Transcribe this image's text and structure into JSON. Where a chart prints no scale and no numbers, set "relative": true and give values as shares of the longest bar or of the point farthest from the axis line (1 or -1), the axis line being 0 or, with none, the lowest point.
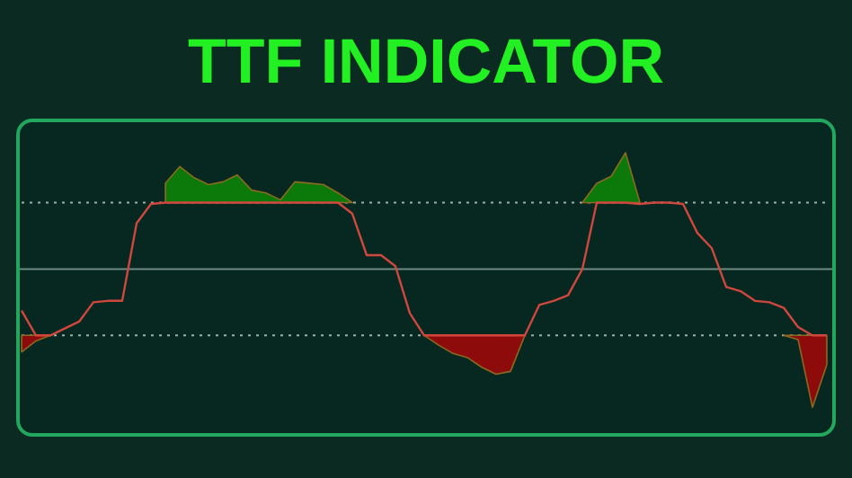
{
  "chart_data": {
    "type": "line",
    "title": "TTF INDICATOR",
    "relative": true,
    "categories": [
      null,
      null,
      null,
      null,
      null,
      null,
      null,
      null,
      null,
      null,
      null,
      null,
      null,
      null,
      null,
      null,
      null,
      null,
      null,
      null,
      null,
      null,
      null,
      null,
      null,
      null,
      null,
      null,
      null,
      null,
      null,
      null,
      null,
      null,
      null,
      null,
      null,
      null,
      null,
      null,
      null,
      null,
      null,
      null,
      null,
      null,
      null,
      null,
      null,
      null,
      null,
      null,
      null,
      null,
      null,
      null,
      null
    ],
    "ref_lines": [
      {
        "axis": "y",
        "value": 0.48,
        "line_style": "dotted",
        "color": "#9fb0a8"
      },
      {
        "axis": "y",
        "value": -0.48,
        "line_style": "dotted",
        "color": "#9fb0a8"
      }
    ],
    "series": [
      {
        "type": "area",
        "color": "#0b7a0b",
        "values": [
          null,
          null,
          null,
          null,
          null,
          null,
          null,
          null,
          null,
          null,
          0.62,
          0.74,
          0.66,
          0.61,
          0.63,
          0.68,
          0.57,
          0.55,
          0.5,
          0.63,
          0.62,
          0.61,
          0.55,
          0.48,
          null,
          null,
          null,
          null,
          null,
          null,
          null,
          null,
          null,
          null,
          null,
          null,
          null,
          null,
          null,
          0.48,
          0.62,
          0.67,
          0.84,
          0.48,
          null,
          null,
          null,
          null,
          null,
          null,
          null,
          null,
          null,
          null,
          null,
          null,
          null
        ]
      },
      {
        "type": "area",
        "color": "#8e0b0b",
        "values": [
          -0.6,
          -0.52,
          -0.48,
          null,
          null,
          null,
          null,
          null,
          null,
          null,
          null,
          null,
          null,
          null,
          null,
          null,
          null,
          null,
          null,
          null,
          null,
          null,
          null,
          null,
          null,
          null,
          null,
          null,
          -0.48,
          -0.55,
          -0.61,
          -0.64,
          -0.71,
          -0.76,
          -0.74,
          -0.48,
          null,
          null,
          null,
          null,
          null,
          null,
          null,
          null,
          null,
          null,
          null,
          null,
          null,
          null,
          null,
          null,
          null,
          -0.48,
          -0.51,
          -1,
          -0.69
        ]
      },
      {
        "color": "#d0473e",
        "values": [
          -0.3,
          -0.48,
          -0.48,
          -0.43,
          -0.38,
          -0.24,
          -0.23,
          -0.23,
          0.33,
          0.47,
          0.48,
          0.48,
          0.48,
          0.48,
          0.48,
          0.48,
          0.48,
          0.48,
          0.48,
          0.48,
          0.48,
          0.48,
          0.48,
          0.4,
          0.1,
          0.1,
          0.02,
          -0.32,
          -0.48,
          -0.48,
          -0.48,
          -0.48,
          -0.48,
          -0.48,
          -0.48,
          -0.48,
          -0.26,
          -0.23,
          -0.19,
          0.0,
          0.48,
          0.48,
          0.48,
          0.47,
          0.48,
          0.48,
          0.47,
          0.26,
          0.15,
          -0.13,
          -0.16,
          -0.23,
          -0.24,
          -0.28,
          -0.42,
          -0.48,
          -0.48
        ]
      }
    ]
  }
}
